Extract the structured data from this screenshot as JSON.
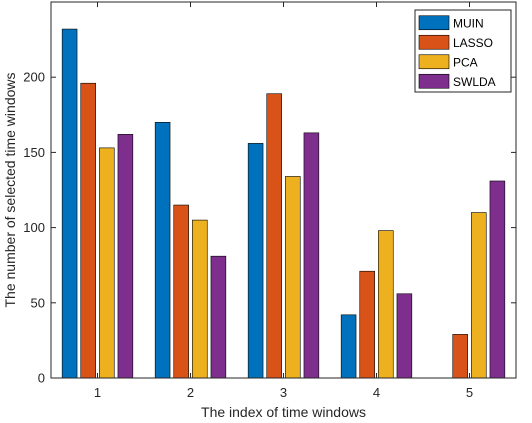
{
  "chart_data": {
    "type": "bar",
    "title": "",
    "xlabel": "The index of time windows",
    "ylabel": "The number of selected time windows",
    "categories": [
      "1",
      "2",
      "3",
      "4",
      "5"
    ],
    "ylim": [
      0,
      250
    ],
    "yticks": [
      0,
      50,
      100,
      150,
      200
    ],
    "grid": false,
    "legend_position": "top-right",
    "series": [
      {
        "name": "MUIN",
        "color": "#0072BD",
        "values": [
          232,
          170,
          156,
          42,
          0
        ]
      },
      {
        "name": "LASSO",
        "color": "#D95319",
        "values": [
          196,
          115,
          189,
          71,
          29
        ]
      },
      {
        "name": "PCA",
        "color": "#EDB120",
        "values": [
          153,
          105,
          134,
          98,
          110
        ]
      },
      {
        "name": "SWLDA",
        "color": "#7E2F8E",
        "values": [
          162,
          81,
          163,
          56,
          131
        ]
      }
    ]
  }
}
